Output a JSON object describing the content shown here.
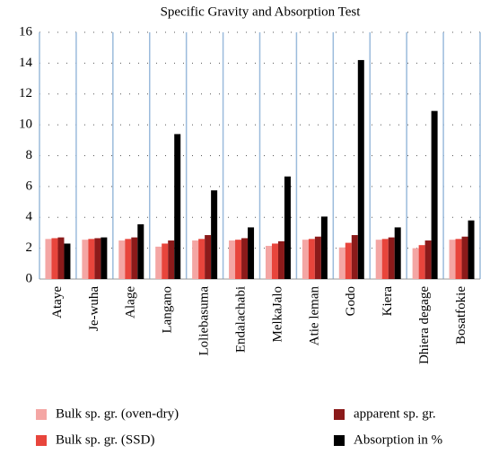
{
  "chart_data": {
    "type": "bar",
    "title": "Specific Gravity and Absorption Test",
    "categories": [
      "Ataye",
      "Je-wuha",
      "Alage",
      "Langano",
      "Loliebasuma",
      "Endalachabi",
      "MelkaJalo",
      "Atie leman",
      "Godo",
      "Kiera",
      "Dhiera degage",
      "Bosatfokie"
    ],
    "series": [
      {
        "name": "Bulk sp. gr. (oven-dry)",
        "color": "#f4a6a4",
        "values": [
          2.6,
          2.55,
          2.5,
          2.1,
          2.5,
          2.5,
          2.15,
          2.55,
          2.05,
          2.55,
          2.0,
          2.55
        ]
      },
      {
        "name": "Bulk sp. gr. (SSD)",
        "color": "#e8453c",
        "values": [
          2.65,
          2.6,
          2.6,
          2.3,
          2.6,
          2.55,
          2.3,
          2.6,
          2.35,
          2.6,
          2.2,
          2.6
        ]
      },
      {
        "name": "apparent sp. gr.",
        "color": "#8b1a1a",
        "values": [
          2.7,
          2.65,
          2.7,
          2.5,
          2.85,
          2.65,
          2.45,
          2.75,
          2.85,
          2.7,
          2.5,
          2.75
        ]
      },
      {
        "name": "Absorption in %",
        "color": "#000000",
        "values": [
          2.3,
          2.7,
          3.55,
          9.4,
          5.75,
          3.35,
          6.65,
          4.05,
          14.2,
          3.35,
          10.9,
          3.8
        ]
      }
    ],
    "ylim": [
      0,
      16
    ],
    "yticks": [
      0,
      2,
      4,
      6,
      8,
      10,
      12,
      14,
      16
    ],
    "grid": true
  }
}
